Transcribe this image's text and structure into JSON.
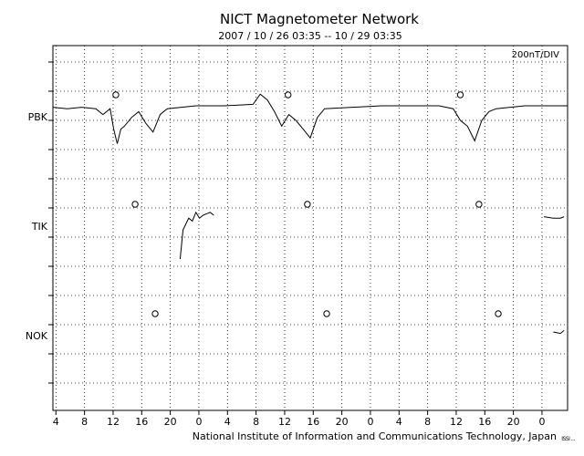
{
  "header": {
    "title": "NICT Magnetometer Network",
    "subtitle": "2007 / 10 / 26   03:35 -- 10 / 29   03:35"
  },
  "footer": {
    "credit": "National Institute of Information and Communications Technology, Japan",
    "corner_mark": "ISSI ..."
  },
  "chart_data": {
    "type": "line",
    "title": "NICT Magnetometer Network",
    "subtitle": "2007 / 10 / 26   03:35 -- 10 / 29   03:35",
    "scale_label": "200nT/DIV",
    "xlabel": "",
    "ylabel": "",
    "x_unit": "hours since 2007-10-26 03:35",
    "xlim": [
      0,
      72
    ],
    "x_tick_labels": [
      "4",
      "8",
      "12",
      "16",
      "20",
      "0",
      "4",
      "8",
      "12",
      "16",
      "20",
      "0",
      "4",
      "8",
      "12",
      "16",
      "20",
      "0"
    ],
    "x_tick_hours": [
      0.42,
      4.42,
      8.42,
      12.42,
      16.42,
      20.42,
      24.42,
      28.42,
      32.42,
      36.42,
      40.42,
      44.42,
      48.42,
      52.42,
      56.42,
      60.42,
      64.42,
      68.42
    ],
    "grid": true,
    "series": [
      {
        "name": "PBK",
        "baseline_index": 0,
        "circle_hours": [
          8.8,
          32.9,
          57.0
        ],
        "points": [
          [
            0,
            -0.05
          ],
          [
            2,
            -0.1
          ],
          [
            4,
            -0.05
          ],
          [
            6,
            -0.1
          ],
          [
            7,
            -0.3
          ],
          [
            8,
            -0.1
          ],
          [
            8.5,
            -0.8
          ],
          [
            9,
            -1.3
          ],
          [
            9.5,
            -0.8
          ],
          [
            10,
            -0.7
          ],
          [
            11,
            -0.4
          ],
          [
            12,
            -0.2
          ],
          [
            13,
            -0.6
          ],
          [
            14,
            -0.9
          ],
          [
            15,
            -0.3
          ],
          [
            16,
            -0.1
          ],
          [
            20,
            0.0
          ],
          [
            24,
            0.0
          ],
          [
            28,
            0.05
          ],
          [
            29,
            0.4
          ],
          [
            30,
            0.2
          ],
          [
            31,
            -0.2
          ],
          [
            32,
            -0.7
          ],
          [
            33,
            -0.3
          ],
          [
            34,
            -0.5
          ],
          [
            35,
            -0.8
          ],
          [
            36,
            -1.1
          ],
          [
            37,
            -0.4
          ],
          [
            38,
            -0.1
          ],
          [
            42,
            -0.05
          ],
          [
            46,
            0.0
          ],
          [
            50,
            0.0
          ],
          [
            54,
            0.0
          ],
          [
            56,
            -0.1
          ],
          [
            57,
            -0.5
          ],
          [
            58,
            -0.7
          ],
          [
            59,
            -1.2
          ],
          [
            60,
            -0.5
          ],
          [
            61,
            -0.2
          ],
          [
            62,
            -0.1
          ],
          [
            66,
            0.0
          ],
          [
            72,
            0.0
          ]
        ]
      },
      {
        "name": "TIK",
        "baseline_index": 1,
        "circle_hours": [
          11.5,
          35.6,
          59.6
        ],
        "points": [
          [
            17.8,
            -1.5
          ],
          [
            18.2,
            -0.5
          ],
          [
            18.6,
            -0.3
          ],
          [
            19,
            -0.1
          ],
          [
            19.5,
            -0.2
          ],
          [
            20,
            0.1
          ],
          [
            20.5,
            -0.1
          ],
          [
            21,
            0.0
          ],
          [
            22,
            0.1
          ],
          [
            22.5,
            0.0
          ]
        ],
        "points_b": [
          [
            68.7,
            -0.05
          ],
          [
            70,
            -0.1
          ],
          [
            71,
            -0.1
          ],
          [
            71.5,
            -0.05
          ]
        ]
      },
      {
        "name": "NOK",
        "baseline_index": 2,
        "circle_hours": [
          14.3,
          38.3,
          62.3
        ],
        "points": [
          [
            70.0,
            -0.25
          ],
          [
            71.0,
            -0.3
          ],
          [
            71.5,
            -0.2
          ]
        ]
      }
    ]
  }
}
